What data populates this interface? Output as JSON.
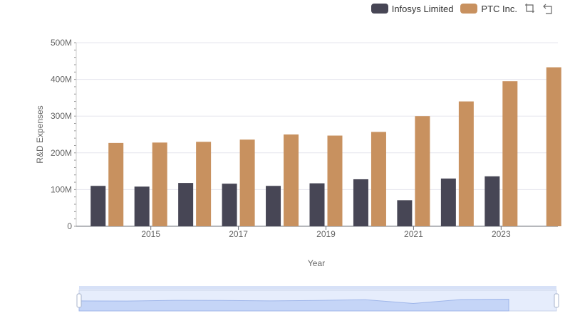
{
  "legend": {
    "items": [
      {
        "label": "Infosys Limited",
        "color": "#474655"
      },
      {
        "label": "PTC Inc.",
        "color": "#c8915f"
      }
    ]
  },
  "toolbar": {
    "zoom_icon": "zoom-select-icon",
    "restore_icon": "restore-icon"
  },
  "chart_data": {
    "type": "bar",
    "xlabel": "Year",
    "ylabel": "R&D Expenses",
    "x": [
      2014,
      2015,
      2016,
      2017,
      2018,
      2019,
      2020,
      2021,
      2022,
      2023,
      2024
    ],
    "xtick_labels": [
      "2015",
      "2017",
      "2019",
      "2021",
      "2023"
    ],
    "ylim": [
      0,
      500000000
    ],
    "ytick_labels": [
      "0",
      "100M",
      "200M",
      "300M",
      "400M",
      "500M"
    ],
    "grid": true,
    "legend_position": "top-right",
    "series": [
      {
        "name": "Infosys Limited",
        "color": "#474655",
        "values": [
          110000000,
          108000000,
          118000000,
          116000000,
          110000000,
          117000000,
          128000000,
          71000000,
          130000000,
          136000000,
          null
        ]
      },
      {
        "name": "PTC Inc.",
        "color": "#c8915f",
        "values": [
          227000000,
          228000000,
          230000000,
          236000000,
          250000000,
          247000000,
          257000000,
          300000000,
          340000000,
          395000000,
          433000000
        ]
      }
    ]
  }
}
